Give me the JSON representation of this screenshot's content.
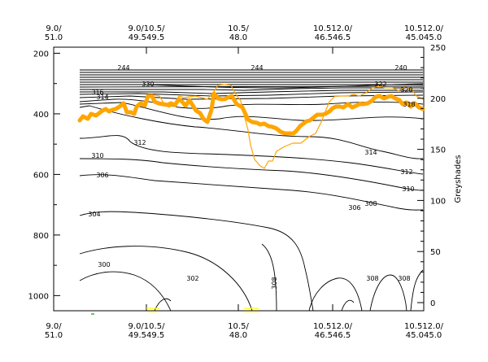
{
  "chart_data": {
    "type": "line",
    "y_axis_left": {
      "ticks": [
        "200",
        "400",
        "600",
        "800",
        "1000"
      ],
      "range": [
        180,
        1050
      ],
      "inverted": true
    },
    "y_axis_right": {
      "label": "Greyshades",
      "ticks": [
        "0",
        "50",
        "100",
        "150",
        "200",
        "250"
      ],
      "range": [
        0,
        250
      ]
    },
    "x_axis_top_labels": [
      {
        "line1": "9.0/",
        "line2": "51.0"
      },
      {
        "line1": "9.0/10.5/",
        "line2": "49.549.5"
      },
      {
        "line1": "10.5/",
        "line2": "48.0"
      },
      {
        "line1": "10.512.0/",
        "line2": "46.546.5"
      },
      {
        "line1": "10.512.0/",
        "line2": "45.045.0"
      }
    ],
    "x_axis_bottom_labels": [
      {
        "line1": "9.0/",
        "line2": "51.0"
      },
      {
        "line1": "9.0/10.5/",
        "line2": "49.549.5"
      },
      {
        "line1": "10.5/",
        "line2": "48.0"
      },
      {
        "line1": "10.512.0/",
        "line2": "46.546.5"
      },
      {
        "line1": "10.512.0/",
        "line2": "45.045.0"
      }
    ],
    "contour_labels": [
      {
        "text": "244",
        "pos": "upper-left"
      },
      {
        "text": "244",
        "pos": "upper-center"
      },
      {
        "text": "240",
        "pos": "upper-right"
      },
      {
        "text": "330",
        "pos": "left"
      },
      {
        "text": "322",
        "pos": "right"
      },
      {
        "text": "320",
        "pos": "right"
      },
      {
        "text": "318",
        "pos": "right"
      },
      {
        "text": "316",
        "pos": "right"
      },
      {
        "text": "314",
        "pos": "left"
      },
      {
        "text": "312",
        "pos": "left"
      },
      {
        "text": "310",
        "pos": "left"
      },
      {
        "text": "306",
        "pos": "left"
      },
      {
        "text": "304",
        "pos": "left"
      },
      {
        "text": "302",
        "pos": "center"
      },
      {
        "text": "300",
        "pos": "left"
      },
      {
        "text": "308",
        "pos": "center-bottom"
      },
      {
        "text": "314",
        "pos": "right"
      },
      {
        "text": "312",
        "pos": "right"
      },
      {
        "text": "310",
        "pos": "right"
      },
      {
        "text": "308",
        "pos": "right"
      },
      {
        "text": "306",
        "pos": "right-bottom"
      },
      {
        "text": "308",
        "pos": "bottom-right"
      },
      {
        "text": "308",
        "pos": "far-right-bottom"
      }
    ],
    "series": [
      {
        "color": "#ffa500",
        "style": "thick",
        "points": [
          [
            98,
            148
          ],
          [
            102,
            143
          ],
          [
            108,
            146
          ],
          [
            112,
            140
          ],
          [
            118,
            142
          ],
          [
            122,
            139
          ],
          [
            126,
            136
          ],
          [
            130,
            134
          ],
          [
            134,
            137
          ],
          [
            138,
            135
          ],
          [
            142,
            134
          ],
          [
            147,
            131
          ],
          [
            152,
            127
          ],
          [
            156,
            138
          ],
          [
            161,
            138
          ],
          [
            165,
            140
          ],
          [
            168,
            131
          ],
          [
            173,
            127
          ],
          [
            178,
            130
          ],
          [
            182,
            118
          ],
          [
            187,
            118
          ],
          [
            190,
            125
          ],
          [
            195,
            127
          ],
          [
            200,
            128
          ],
          [
            206,
            129
          ],
          [
            210,
            127
          ],
          [
            215,
            129
          ],
          [
            220,
            122
          ],
          [
            224,
            125
          ],
          [
            228,
            130
          ],
          [
            233,
            123
          ],
          [
            236,
            128
          ],
          [
            241,
            136
          ],
          [
            246,
            139
          ],
          [
            250,
            146
          ],
          [
            255,
            150
          ],
          [
            260,
            135
          ],
          [
            263,
            115
          ],
          [
            268,
            121
          ],
          [
            272,
            122
          ],
          [
            276,
            122
          ],
          [
            280,
            120
          ],
          [
            285,
            118
          ],
          [
            291,
            128
          ],
          [
            298,
            132
          ],
          [
            305,
            147
          ],
          [
            310,
            150
          ],
          [
            316,
            151
          ],
          [
            320,
            153
          ],
          [
            325,
            152
          ],
          [
            330,
            155
          ],
          [
            335,
            156
          ],
          [
            340,
            158
          ],
          [
            345,
            162
          ],
          [
            350,
            164
          ],
          [
            356,
            164
          ],
          [
            361,
            164
          ],
          [
            365,
            160
          ],
          [
            369,
            155
          ],
          [
            373,
            152
          ],
          [
            377,
            149
          ],
          [
            381,
            148
          ],
          [
            385,
            145
          ],
          [
            390,
            141
          ],
          [
            396,
            141
          ],
          [
            400,
            140
          ],
          [
            405,
            137
          ],
          [
            409,
            133
          ],
          [
            413,
            131
          ],
          [
            418,
            131
          ],
          [
            422,
            132
          ],
          [
            428,
            128
          ],
          [
            433,
            132
          ],
          [
            438,
            130
          ],
          [
            442,
            128
          ],
          [
            447,
            128
          ],
          [
            452,
            127
          ],
          [
            457,
            124
          ],
          [
            462,
            119
          ],
          [
            467,
            118
          ],
          [
            472,
            121
          ],
          [
            477,
            119
          ],
          [
            481,
            118
          ],
          [
            486,
            121
          ],
          [
            491,
            123
          ],
          [
            495,
            128
          ],
          [
            500,
            126
          ],
          [
            505,
            131
          ],
          [
            510,
            127
          ],
          [
            515,
            132
          ],
          [
            520,
            134
          ]
        ]
      },
      {
        "color": "#ffa500",
        "style": "thin",
        "points": [
          [
            178,
            129
          ],
          [
            184,
            118
          ],
          [
            190,
            117
          ],
          [
            196,
            118
          ],
          [
            202,
            128
          ],
          [
            208,
            132
          ],
          [
            214,
            128
          ],
          [
            220,
            118
          ],
          [
            226,
            120
          ],
          [
            233,
            119
          ],
          [
            240,
            118
          ],
          [
            248,
            120
          ],
          [
            255,
            122
          ],
          [
            262,
            114
          ],
          [
            268,
            105
          ],
          [
            276,
            104
          ],
          [
            284,
            105
          ],
          [
            290,
            116
          ],
          [
            296,
            124
          ],
          [
            301,
            145
          ],
          [
            305,
            160
          ],
          [
            308,
            178
          ],
          [
            313,
            196
          ],
          [
            320,
            204
          ],
          [
            325,
            207
          ],
          [
            330,
            198
          ],
          [
            335,
            198
          ],
          [
            340,
            186
          ],
          [
            350,
            180
          ],
          [
            360,
            176
          ],
          [
            370,
            176
          ],
          [
            380,
            168
          ],
          [
            388,
            164
          ],
          [
            395,
            150
          ],
          [
            400,
            137
          ],
          [
            405,
            125
          ],
          [
            412,
            118
          ],
          [
            420,
            118
          ],
          [
            428,
            118
          ],
          [
            435,
            116
          ],
          [
            442,
            118
          ],
          [
            450,
            114
          ],
          [
            458,
            108
          ],
          [
            466,
            106
          ],
          [
            474,
            108
          ],
          [
            482,
            108
          ],
          [
            490,
            111
          ],
          [
            498,
            107
          ],
          [
            506,
            110
          ],
          [
            512,
            118
          ],
          [
            520,
            122
          ]
        ]
      }
    ],
    "legend_marks": [
      {
        "color": "#ffff00",
        "pos": "bottom-near-49.5"
      },
      {
        "color": "#ffff00",
        "pos": "bottom-near-48.0"
      },
      {
        "color": "#00a000",
        "pos": "bottom-left"
      }
    ]
  }
}
